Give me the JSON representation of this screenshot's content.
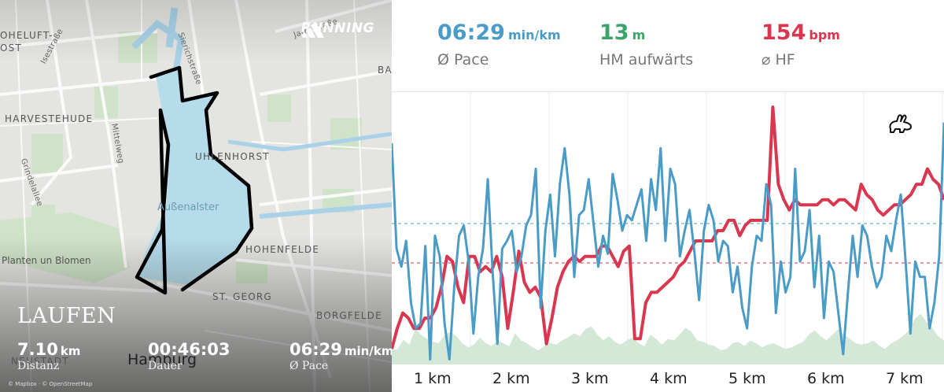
{
  "map": {
    "labels": {
      "hoheluft": "OHELUFT-",
      "ost": "OST",
      "harvestehude": "HARVESTEHUDE",
      "uhlenhorst": "UHLENHORST",
      "aussenalster": "Außenalster",
      "hohenfelde": "HOHENFELDE",
      "planten": "Planten un Blomen",
      "stgeorg": "ST. GEORG",
      "borgfelde": "BORGFELDE",
      "neustadt": "NEUSTADT",
      "hamburg": "Hamburg",
      "ba": "BA"
    },
    "streets": {
      "isestrasse": "Isestraße",
      "sierichstrasse": "Sierichstraße",
      "jarrestrasse": "Jarrestraße",
      "mittelweg": "Mittelweg",
      "grindelallee": "Grindelallee"
    },
    "attribution": "© Mapbox · © OpenStreetMap"
  },
  "brand": {
    "name": "RUNNING",
    "logo_icon": "adidas-logo-icon"
  },
  "activity": {
    "title": "LAUFEN"
  },
  "stats": {
    "distance": {
      "value": "7.10",
      "unit": "km",
      "label": "Distanz"
    },
    "duration": {
      "value": "00:46:03",
      "label": "Dauer"
    },
    "pace": {
      "value": "06:29",
      "unit": "min/km",
      "label": "Ø Pace"
    }
  },
  "summary": {
    "pace": {
      "value": "06:29",
      "unit": "min/km",
      "caption": "Ø Pace",
      "color": "#4a9cc6"
    },
    "elevation": {
      "value": "13",
      "unit": "m",
      "caption": "HM aufwärts",
      "color": "#3aa46a"
    },
    "heartrate": {
      "value": "154",
      "unit": "bpm",
      "caption": "⌀ HF",
      "color": "#d9374f"
    }
  },
  "chart_data": {
    "type": "line",
    "x_labels": [
      "1 km",
      "2 km",
      "3 km",
      "4 km",
      "5 km",
      "6 km",
      "7 km"
    ],
    "series": [
      {
        "color": "#4a9cc6",
        "values": [
          0.14,
          0.55,
          0.62,
          0.52,
          0.76,
          0.86,
          0.84,
          0.54,
          0.98,
          0.5,
          0.58,
          0.84,
          0.98,
          0.7,
          0.5,
          0.46,
          0.6,
          0.88,
          0.66,
          0.55,
          0.28,
          0.64,
          0.92,
          0.55,
          0.52,
          0.48,
          0.64,
          0.58,
          0.46,
          0.42,
          0.24,
          0.78,
          0.48,
          0.34,
          0.58,
          0.3,
          0.16,
          0.34,
          0.66,
          0.42,
          0.4,
          0.28,
          0.45,
          0.62,
          0.5,
          0.57,
          0.26,
          0.36,
          0.48,
          0.42,
          0.44,
          0.38,
          0.32,
          0.52,
          0.28,
          0.4,
          0.16,
          0.52,
          0.24,
          0.3,
          0.58,
          0.48,
          0.4,
          0.56,
          0.75,
          0.48,
          0.38,
          0.44,
          0.6,
          0.52,
          0.54,
          0.72,
          0.62,
          0.78,
          0.86,
          0.62,
          0.5,
          0.52,
          0.3,
          0.38,
          0.8,
          0.6,
          0.72,
          0.66,
          0.24,
          0.6,
          0.56,
          0.4,
          0.7,
          0.5,
          0.82,
          0.6,
          0.64,
          0.8,
          0.96,
          0.72,
          0.5,
          0.66,
          0.46,
          0.5,
          0.62,
          0.7,
          0.66,
          0.5,
          0.56,
          0.44,
          0.34,
          0.6,
          0.88,
          0.6,
          0.66,
          0.66,
          0.86,
          0.76,
          0.58,
          0.06
        ]
      },
      {
        "color": "#d9374f",
        "values": [
          0.94,
          0.86,
          0.8,
          0.82,
          0.86,
          0.86,
          0.82,
          0.82,
          0.78,
          0.7,
          0.58,
          0.6,
          0.7,
          0.76,
          0.58,
          0.58,
          0.64,
          0.62,
          0.64,
          0.58,
          0.66,
          0.86,
          0.72,
          0.56,
          0.68,
          0.72,
          0.7,
          0.74,
          0.92,
          0.82,
          0.7,
          0.64,
          0.6,
          0.58,
          0.6,
          0.58,
          0.58,
          0.58,
          0.54,
          0.54,
          0.58,
          0.62,
          0.56,
          0.54,
          0.9,
          0.9,
          0.76,
          0.72,
          0.72,
          0.7,
          0.68,
          0.66,
          0.62,
          0.6,
          0.56,
          0.52,
          0.52,
          0.52,
          0.52,
          0.48,
          0.48,
          0.44,
          0.44,
          0.5,
          0.46,
          0.44,
          0.44,
          0.44,
          0.44,
          0.0,
          0.3,
          0.36,
          0.4,
          0.36,
          0.38,
          0.38,
          0.38,
          0.38,
          0.36,
          0.36,
          0.38,
          0.36,
          0.36,
          0.38,
          0.4,
          0.3,
          0.34,
          0.36,
          0.4,
          0.42,
          0.4,
          0.38,
          0.38,
          0.36,
          0.34,
          0.3,
          0.3,
          0.24,
          0.28,
          0.3,
          0.36
        ]
      },
      {
        "color": "#d4e8d8",
        "values": [
          0.2,
          0.22,
          0.35,
          0.28,
          0.5,
          0.42,
          0.36,
          0.32,
          0.3,
          0.42,
          0.46,
          0.4,
          0.3,
          0.24,
          0.28,
          0.38,
          0.3,
          0.26,
          0.34,
          0.3,
          0.26,
          0.44,
          0.34,
          0.3,
          0.24,
          0.2,
          0.26,
          0.3,
          0.28,
          0.34,
          0.38,
          0.44,
          0.4,
          0.5,
          0.54,
          0.42,
          0.34,
          0.4,
          0.32,
          0.28,
          0.34,
          0.38,
          0.3,
          0.26,
          0.42,
          0.36,
          0.28,
          0.36,
          0.34,
          0.42,
          0.52,
          0.46,
          0.34,
          0.32,
          0.28,
          0.26,
          0.2,
          0.22,
          0.3,
          0.32,
          0.26,
          0.34,
          0.3,
          0.24,
          0.28,
          0.3,
          0.26,
          0.22,
          0.24,
          0.28,
          0.32,
          0.42,
          0.48,
          0.4,
          0.34,
          0.42,
          0.5,
          0.42,
          0.36,
          0.3,
          0.28,
          0.3,
          0.34,
          0.26,
          0.22,
          0.3,
          0.34,
          0.4,
          0.48,
          0.64,
          0.72,
          0.6,
          0.52,
          0.4,
          0.34
        ]
      }
    ],
    "reference_lines": [
      {
        "color": "#4a9cc6",
        "value": 0.5
      },
      {
        "color": "#d9374f",
        "value": 0.5
      }
    ]
  }
}
